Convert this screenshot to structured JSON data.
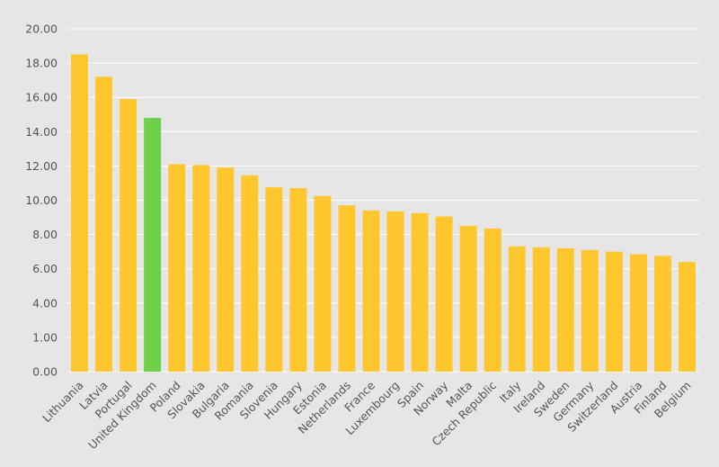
{
  "chart_data": {
    "type": "bar",
    "title": "",
    "xlabel": "",
    "ylabel": "",
    "categories": [
      "Lithuania",
      "Latvia",
      "Portugal",
      "United Kingdom",
      "Poland",
      "Slovakia",
      "Bulgaria",
      "Romania",
      "Slovenia",
      "Hungary",
      "Estonia",
      "Netherlands",
      "France",
      "Luxembourg",
      "Spain",
      "Norway",
      "Malta",
      "Czech Republic",
      "Italy",
      "Ireland",
      "Sweden",
      "Germany",
      "Switzerland",
      "Austria",
      "Finland",
      "Belgium"
    ],
    "values": [
      18.5,
      17.2,
      15.9,
      14.8,
      12.1,
      12.05,
      11.9,
      11.45,
      10.75,
      10.7,
      10.25,
      9.7,
      9.4,
      9.35,
      9.25,
      9.05,
      8.5,
      8.35,
      7.3,
      7.25,
      7.2,
      7.1,
      7.0,
      6.85,
      6.75,
      6.4
    ],
    "y_tick_labels": [
      "0.00",
      "1.00",
      "4.00",
      "6.00",
      "8.00",
      "10.00",
      "12.00",
      "14.00",
      "16.00",
      "18.00",
      "20.00"
    ],
    "ylim": [
      0,
      20
    ],
    "grid": true,
    "legend": "none",
    "colors": {
      "default_bar": "#ffc62e",
      "highlight_bar": "#6dd24a",
      "highlight_category": "United Kingdom",
      "grid": "#ffffff",
      "background": "#e6e6e6",
      "text": "#555555"
    }
  }
}
